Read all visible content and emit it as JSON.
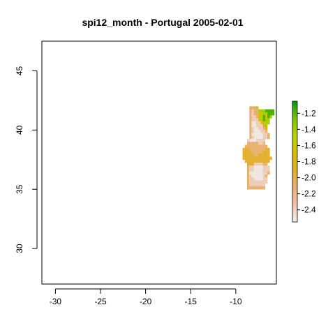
{
  "chart_data": {
    "type": "heatmap",
    "title": "spi12_month - Portugal 2005-02-01",
    "xlabel": "",
    "ylabel": "",
    "xlim": [
      -31.5,
      -5.5
    ],
    "ylim": [
      27,
      47.5
    ],
    "xticks": [
      -30,
      -25,
      -20,
      -15,
      -10
    ],
    "xtick_labels": [
      "-30",
      "-25",
      "-20",
      "-15",
      "-10"
    ],
    "yticks": [
      30,
      35,
      40,
      45
    ],
    "ytick_labels": [
      "30",
      "35",
      "40",
      "45"
    ],
    "grid": false,
    "legend": {
      "placement": "right",
      "range": [
        -2.55,
        -1.05
      ],
      "ticks": [
        -1.2,
        -1.4,
        -1.6,
        -1.8,
        -2.0,
        -2.2,
        -2.4
      ],
      "tick_labels": [
        "-1.2",
        "-1.4",
        "-1.6",
        "-1.8",
        "-2.0",
        "-2.2",
        "-2.4"
      ],
      "colors": [
        "#f2f2f2",
        "#eec3a8",
        "#e8b272",
        "#e3b021",
        "#d4c000",
        "#b8d200",
        "#7cc400",
        "#009900"
      ]
    },
    "grid_data": {
      "x0": -9.5,
      "y0": 42.0,
      "cell": 0.25,
      "rows": [
        "....TTOE........",
        "....OBOOXXXWWWW.",
        "....OBOONVXVWWW.",
        "....OBBOPVWVWX..",
        "....OBBBSVWXX...",
        "....ORRBBSNVX...",
        "....ORRBBBSX....",
        "....OBRRBBOS....",
        "....OBRRRBBO....",
        "....ORRRRRBBO...",
        "....OBRRRRBBT...",
        "...BRRRBBBB.....",
        "...OOOOOBBO.....",
        "..OOOOOOOOOO....",
        ".YYYOOOOOOOYY...",
        ".YYYYOOOOOYYY...",
        ".YYYYYOOYYYYY...",
        ".YYYYYYYYYYYYY..",
        "..YYYYYYYYYYY...",
        "...YYYBBBBOO....",
        "...OBBRRRRBBB...",
        "...OBBRRRRBBB...",
        "...ORRRRRRBBO...",
        "...OBRRRRRBO....",
        "...OBBRRRRBB....",
        "...OBBBBBBBB....",
        "...OBBBBBBB.....",
        "...OOOOOOOO....."
      ],
      "values": {
        "R": -2.5,
        "B": -2.38,
        "O": -2.12,
        "T": -2.05,
        "E": -1.95,
        "Y": -1.95,
        "S": -1.82,
        "P": -1.72,
        "N": -1.62,
        "V": -1.55,
        "X": -1.42,
        "W": -1.18
      }
    }
  }
}
